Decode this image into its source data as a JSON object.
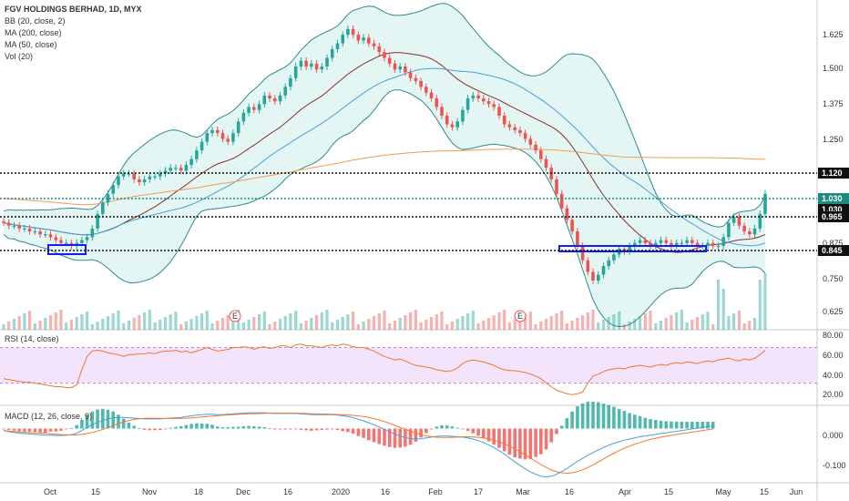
{
  "legend": {
    "title": "FGV HOLDINGS BERHAD, 1D, MYX",
    "bb": "BB (20, close, 2)",
    "ma200": "MA (200, close)",
    "ma50": "MA (50, close)",
    "vol": "Vol (20)"
  },
  "rsi_label": "RSI (14, close)",
  "macd_label": "MACD (12, 26, close, 9)",
  "colors": {
    "up": "#26a69a",
    "down": "#ef5350",
    "bb": "#2e8b8b",
    "bbfill": "#d9f2ef",
    "ma200": "#f39c4e",
    "ma50": "#4a9fd8",
    "basis": "#8b2e2e",
    "rsi": "#f07830",
    "rsiband": "#f3e4fb",
    "macd": "#4a9fd8",
    "signal": "#f07830",
    "box": "#1a1aff"
  },
  "chart_data": {
    "type": "candlestick",
    "price_axis": {
      "ticks": [
        "1.625",
        "1.500",
        "1.375",
        "1.250",
        "0.875",
        "0.750",
        "0.625"
      ]
    },
    "rsi_axis": {
      "ticks": [
        "80.00",
        "60.00",
        "40.00",
        "20.00"
      ]
    },
    "macd_axis": {
      "ticks": [
        "0.000",
        "-0.100"
      ]
    },
    "x_ticks": [
      "Oct",
      "15",
      "Nov",
      "18",
      "Dec",
      "16",
      "2020",
      "16",
      "Feb",
      "17",
      "Mar",
      "16",
      "Apr",
      "15",
      "May",
      "15",
      "Jun"
    ],
    "levels": [
      {
        "value": 1.12,
        "label": "1.120",
        "style": "dark"
      },
      {
        "value": 1.03,
        "label": "1.030",
        "style": "teal"
      },
      {
        "value": 1.03,
        "label": "1.030",
        "style": "dark"
      },
      {
        "value": 0.965,
        "label": "0.965",
        "style": "dark"
      },
      {
        "value": 0.845,
        "label": "0.845",
        "style": "dark"
      }
    ],
    "earnings_markers": [
      "E",
      "E"
    ],
    "close_series": [
      0.93,
      0.92,
      0.92,
      0.91,
      0.91,
      0.9,
      0.9,
      0.89,
      0.89,
      0.88,
      0.87,
      0.86,
      0.86,
      0.85,
      0.86,
      0.87,
      0.88,
      0.91,
      0.96,
      1.0,
      1.03,
      1.06,
      1.09,
      1.1,
      1.1,
      1.08,
      1.07,
      1.08,
      1.09,
      1.09,
      1.1,
      1.11,
      1.12,
      1.12,
      1.11,
      1.13,
      1.15,
      1.18,
      1.21,
      1.24,
      1.25,
      1.24,
      1.22,
      1.21,
      1.24,
      1.28,
      1.31,
      1.33,
      1.32,
      1.34,
      1.37,
      1.36,
      1.35,
      1.37,
      1.4,
      1.43,
      1.47,
      1.49,
      1.47,
      1.48,
      1.46,
      1.47,
      1.5,
      1.53,
      1.55,
      1.58,
      1.6,
      1.58,
      1.56,
      1.57,
      1.55,
      1.54,
      1.52,
      1.5,
      1.48,
      1.46,
      1.47,
      1.45,
      1.43,
      1.42,
      1.4,
      1.38,
      1.36,
      1.33,
      1.3,
      1.27,
      1.26,
      1.28,
      1.32,
      1.36,
      1.37,
      1.36,
      1.35,
      1.34,
      1.33,
      1.3,
      1.27,
      1.26,
      1.25,
      1.24,
      1.22,
      1.2,
      1.18,
      1.15,
      1.12,
      1.08,
      1.03,
      0.98,
      0.94,
      0.9,
      0.85,
      0.8,
      0.76,
      0.73,
      0.75,
      0.78,
      0.8,
      0.82,
      0.84,
      0.83,
      0.85,
      0.86,
      0.87,
      0.86,
      0.85,
      0.86,
      0.87,
      0.86,
      0.85,
      0.86,
      0.86,
      0.87,
      0.86,
      0.85,
      0.85,
      0.86,
      0.85,
      0.85,
      0.88,
      0.93,
      0.95,
      0.92,
      0.9,
      0.89,
      0.91,
      0.96,
      1.03
    ],
    "rsi_values": [
      35,
      34,
      33,
      32,
      31,
      31,
      30,
      29,
      28,
      27,
      26,
      26,
      25,
      25,
      28,
      45,
      60,
      66,
      67,
      66,
      64,
      63,
      62,
      60,
      62,
      62,
      63,
      63,
      64,
      63,
      65,
      66,
      66,
      67,
      65,
      66,
      64,
      66,
      68,
      70,
      68,
      66,
      67,
      68,
      70,
      70,
      71,
      70,
      68,
      70,
      71,
      69,
      70,
      72,
      72,
      70,
      73,
      74,
      72,
      72,
      71,
      70,
      72,
      73,
      72,
      74,
      73,
      71,
      70,
      70,
      68,
      66,
      63,
      60,
      58,
      56,
      57,
      55,
      52,
      50,
      49,
      48,
      47,
      45,
      44,
      43,
      44,
      47,
      52,
      55,
      56,
      55,
      54,
      52,
      50,
      47,
      45,
      44,
      44,
      43,
      42,
      40,
      38,
      35,
      30,
      26,
      22,
      20,
      18,
      17,
      18,
      20,
      30,
      38,
      40,
      43,
      45,
      46,
      47,
      46,
      48,
      49,
      50,
      49,
      48,
      50,
      51,
      50,
      52,
      53,
      52,
      54,
      53,
      52,
      54,
      55,
      54,
      56,
      57,
      58,
      56,
      55,
      57,
      56,
      58,
      62,
      67
    ],
    "macd_values": [
      -0.005,
      -0.008,
      -0.01,
      -0.012,
      -0.013,
      -0.014,
      -0.015,
      -0.016,
      -0.017,
      -0.017,
      -0.018,
      -0.018,
      -0.017,
      -0.016,
      -0.012,
      -0.005,
      0.003,
      0.01,
      0.016,
      0.021,
      0.025,
      0.028,
      0.029,
      0.029,
      0.028,
      0.027,
      0.026,
      0.025,
      0.025,
      0.025,
      0.025,
      0.026,
      0.027,
      0.028,
      0.029,
      0.031,
      0.033,
      0.035,
      0.036,
      0.037,
      0.037,
      0.036,
      0.036,
      0.037,
      0.038,
      0.039,
      0.04,
      0.041,
      0.041,
      0.041,
      0.041,
      0.04,
      0.039,
      0.039,
      0.039,
      0.039,
      0.039,
      0.038,
      0.037,
      0.036,
      0.036,
      0.036,
      0.036,
      0.036,
      0.035,
      0.033,
      0.031,
      0.028,
      0.024,
      0.02,
      0.015,
      0.01,
      0.004,
      -0.002,
      -0.008,
      -0.014,
      -0.019,
      -0.023,
      -0.026,
      -0.027,
      -0.026,
      -0.024,
      -0.022,
      -0.02,
      -0.019,
      -0.019,
      -0.02,
      -0.021,
      -0.022,
      -0.024,
      -0.027,
      -0.031,
      -0.036,
      -0.042,
      -0.049,
      -0.057,
      -0.066,
      -0.076,
      -0.086,
      -0.095,
      -0.104,
      -0.112,
      -0.118,
      -0.123,
      -0.125,
      -0.123,
      -0.118,
      -0.111,
      -0.103,
      -0.094,
      -0.085,
      -0.077,
      -0.069,
      -0.062,
      -0.055,
      -0.049,
      -0.043,
      -0.038,
      -0.034,
      -0.03,
      -0.027,
      -0.024,
      -0.021,
      -0.019,
      -0.017,
      -0.015,
      -0.013,
      -0.011,
      -0.009,
      -0.007,
      -0.005,
      -0.003,
      -0.001,
      0.001,
      0.003,
      0.005,
      0.007
    ]
  }
}
